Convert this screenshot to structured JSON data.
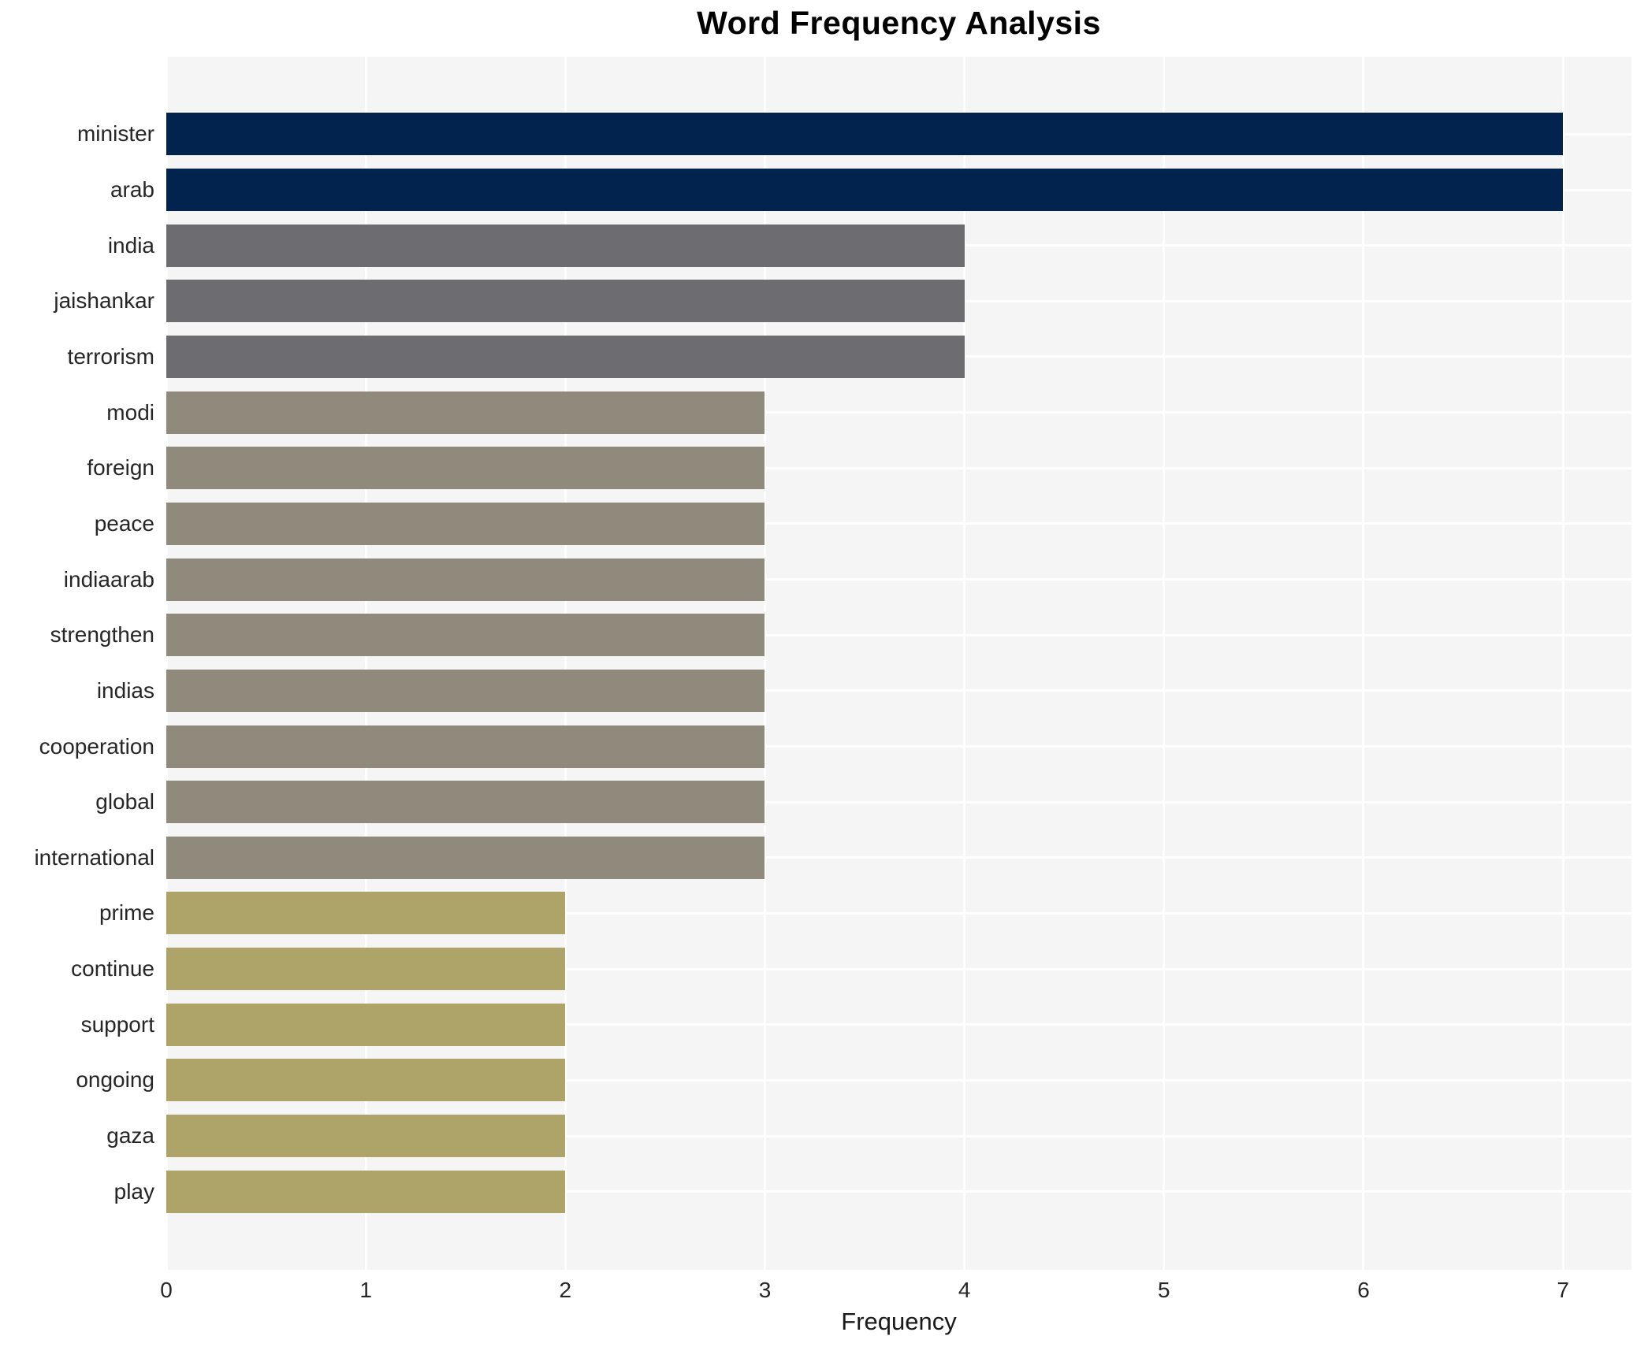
{
  "chart": {
    "title": "Word Frequency Analysis",
    "xlabel": "Frequency"
  },
  "chart_data": {
    "type": "bar",
    "orientation": "horizontal",
    "title": "Word Frequency Analysis",
    "xlabel": "Frequency",
    "ylabel": "",
    "categories": [
      "minister",
      "arab",
      "india",
      "jaishankar",
      "terrorism",
      "modi",
      "foreign",
      "peace",
      "indiaarab",
      "strengthen",
      "indias",
      "cooperation",
      "global",
      "international",
      "prime",
      "continue",
      "support",
      "ongoing",
      "gaza",
      "play"
    ],
    "values": [
      7,
      7,
      4,
      4,
      4,
      3,
      3,
      3,
      3,
      3,
      3,
      3,
      3,
      3,
      2,
      2,
      2,
      2,
      2,
      2
    ],
    "bar_colors": [
      "#02234e",
      "#02234e",
      "#6d6d71",
      "#6d6d71",
      "#6d6d71",
      "#8f8a7b",
      "#8f8a7b",
      "#8f8a7b",
      "#8f8a7b",
      "#8f8a7b",
      "#8f8a7b",
      "#8f8a7b",
      "#8f8a7b",
      "#8f8a7b",
      "#aea46a",
      "#aea46a",
      "#aea46a",
      "#aea46a",
      "#aea46a",
      "#aea46a"
    ],
    "xticks": [
      0,
      1,
      2,
      3,
      4,
      5,
      6,
      7
    ],
    "xlim": [
      0,
      7.343
    ],
    "grid": true,
    "legend": false,
    "panel_bg": "#f5f5f6",
    "grid_color": "#ffffff",
    "text_color": "#262626",
    "title_color": "#000000"
  }
}
